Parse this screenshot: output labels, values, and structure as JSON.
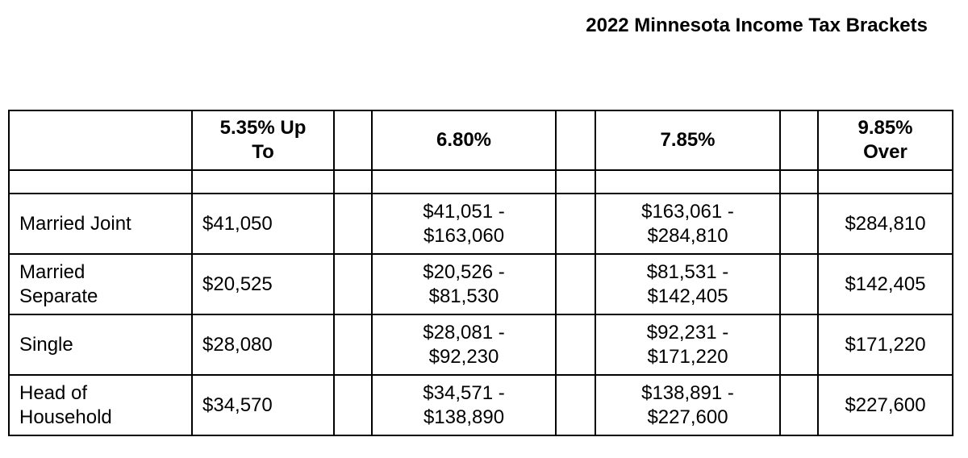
{
  "title": "2022 Minnesota Income Tax Brackets",
  "table": {
    "header": [
      "5.35% Up\nTo",
      "6.80%",
      "7.85%",
      "9.85%\nOver"
    ],
    "rows": [
      [
        "Married Joint",
        "$41,050",
        "$41,051 -\n$163,060",
        "$163,061 -\n$284,810",
        "$284,810"
      ],
      [
        "Married\nSeparate",
        "$20,525",
        "$20,526 -\n$81,530",
        "$81,531 -\n$142,405",
        "$142,405"
      ],
      [
        "Single",
        "$28,080",
        "$28,081 -\n$92,230",
        "$92,231 -\n$171,220",
        "$171,220"
      ],
      [
        "Head of\nHousehold",
        "$34,570",
        "$34,571 -\n$138,890",
        "$138,891 -\n$227,600",
        "$227,600"
      ]
    ]
  }
}
